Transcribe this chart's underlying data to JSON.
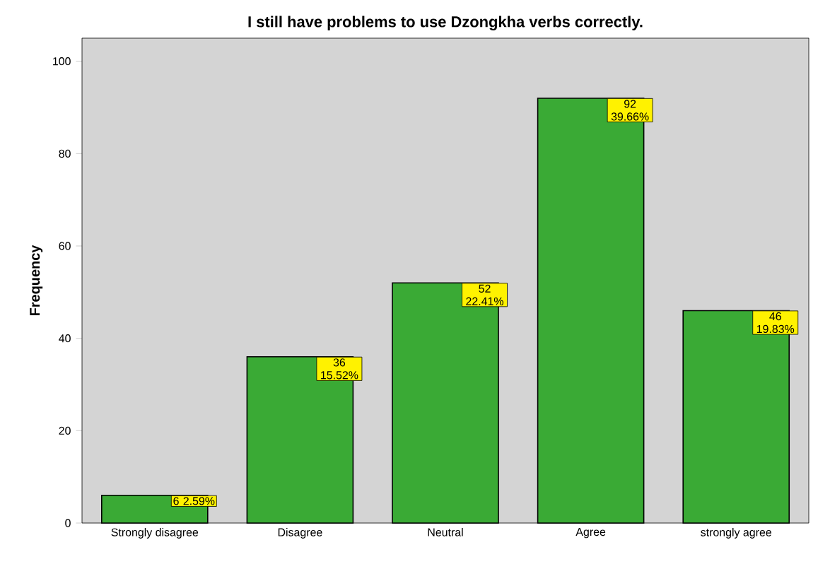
{
  "chart_data": {
    "type": "bar",
    "title": "I still have problems to use Dzongkha verbs correctly.",
    "ylabel": "Frequency",
    "categories": [
      "Strongly disagree",
      "Disagree",
      "Neutral",
      "Agree",
      "strongly agree"
    ],
    "values": [
      6,
      36,
      52,
      92,
      46
    ],
    "color": "#3aaa35",
    "value_labels": [
      "6 2.59%",
      "36 15.52%",
      "52 22.41%",
      "92 39.66%",
      "46 19.83%"
    ],
    "ylim": [
      0,
      105
    ],
    "yticks": [
      0,
      20,
      40,
      60,
      80,
      100
    ],
    "grid": false
  }
}
